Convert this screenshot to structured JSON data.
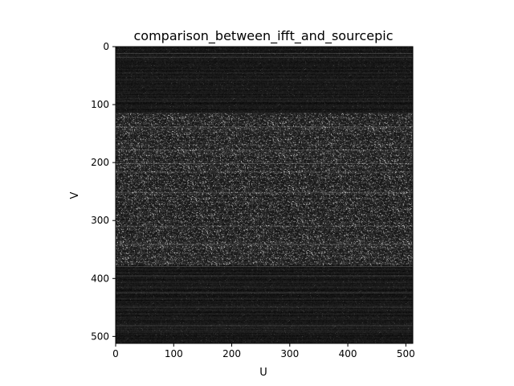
{
  "chart_data": {
    "type": "heatmap",
    "title": "comparison_between_ifft_and_sourcepic",
    "xlabel": "U",
    "ylabel": "V",
    "colormap": "gray",
    "image_size": [
      512,
      512
    ],
    "xlim": [
      0,
      512
    ],
    "ylim": [
      512,
      0
    ],
    "xticks": [
      0,
      100,
      200,
      300,
      400,
      500
    ],
    "yticks": [
      0,
      100,
      200,
      300,
      400,
      500
    ],
    "grid": false,
    "bands": [
      {
        "rows": [
          0,
          115
        ],
        "brightness": "low"
      },
      {
        "rows": [
          115,
          378
        ],
        "brightness": "high"
      },
      {
        "rows": [
          378,
          512
        ],
        "brightness": "low"
      }
    ]
  }
}
